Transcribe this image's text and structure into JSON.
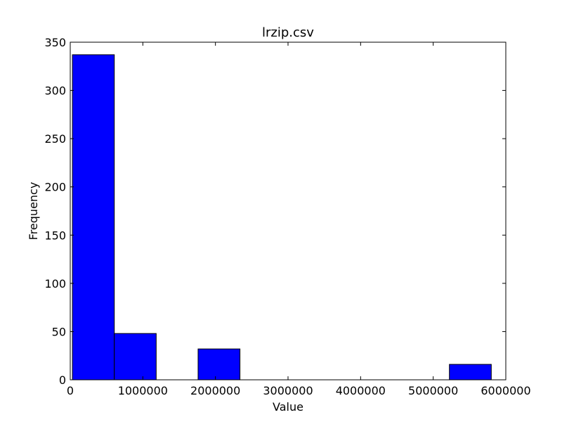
{
  "chart_data": {
    "type": "bar",
    "title": "lrzip.csv",
    "xlabel": "Value",
    "ylabel": "Frequency",
    "xlim": [
      0,
      6000000
    ],
    "ylim": [
      0,
      350
    ],
    "x_ticks": [
      0,
      1000000,
      2000000,
      3000000,
      4000000,
      5000000,
      6000000
    ],
    "x_tick_labels": [
      "0",
      "1000000",
      "2000000",
      "3000000",
      "4000000",
      "5000000",
      "6000000"
    ],
    "y_ticks": [
      0,
      50,
      100,
      150,
      200,
      250,
      300,
      350
    ],
    "y_tick_labels": [
      "0",
      "50",
      "100",
      "150",
      "200",
      "250",
      "300",
      "350"
    ],
    "grid": false,
    "bar_color": "#0000ff",
    "bins": [
      {
        "x0": 30000,
        "x1": 607000,
        "count": 337
      },
      {
        "x0": 607000,
        "x1": 1184000,
        "count": 48
      },
      {
        "x0": 1184000,
        "x1": 1761000,
        "count": 0
      },
      {
        "x0": 1761000,
        "x1": 2338000,
        "count": 32
      },
      {
        "x0": 2338000,
        "x1": 2915000,
        "count": 0
      },
      {
        "x0": 2915000,
        "x1": 3492000,
        "count": 0
      },
      {
        "x0": 3492000,
        "x1": 4069000,
        "count": 0
      },
      {
        "x0": 4069000,
        "x1": 4646000,
        "count": 0
      },
      {
        "x0": 4646000,
        "x1": 5223000,
        "count": 0
      },
      {
        "x0": 5223000,
        "x1": 5800000,
        "count": 16
      }
    ]
  }
}
